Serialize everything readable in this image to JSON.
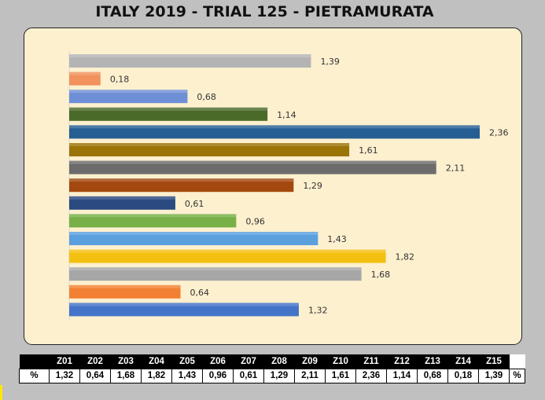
{
  "chart_data": {
    "type": "bar",
    "orientation": "horizontal",
    "title": "ITALY 2019 - TRIAL 125 - PIETRAMURATA",
    "xlim": [
      0,
      2.36
    ],
    "grid": false,
    "legend": "none",
    "bars_top_to_bottom": [
      {
        "category": "Z15",
        "value": 1.39,
        "label": "1,39",
        "color": "#b4b4b4"
      },
      {
        "category": "Z14",
        "value": 0.18,
        "label": "0,18",
        "color": "#f2925c"
      },
      {
        "category": "Z13",
        "value": 0.68,
        "label": "0,68",
        "color": "#6e8fd6"
      },
      {
        "category": "Z12",
        "value": 1.14,
        "label": "1,14",
        "color": "#4a6a2a"
      },
      {
        "category": "Z11",
        "value": 2.36,
        "label": "2,36",
        "color": "#255e92"
      },
      {
        "category": "Z10",
        "value": 1.61,
        "label": "1,61",
        "color": "#9b7408"
      },
      {
        "category": "Z09",
        "value": 2.11,
        "label": "2,11",
        "color": "#6c6c6c"
      },
      {
        "category": "Z08",
        "value": 1.29,
        "label": "1,29",
        "color": "#a3480e"
      },
      {
        "category": "Z07",
        "value": 0.61,
        "label": "0,61",
        "color": "#2a4a80"
      },
      {
        "category": "Z06",
        "value": 0.96,
        "label": "0,96",
        "color": "#76b046"
      },
      {
        "category": "Z05",
        "value": 1.43,
        "label": "1,43",
        "color": "#5a9fde"
      },
      {
        "category": "Z04",
        "value": 1.82,
        "label": "1,82",
        "color": "#f4c010"
      },
      {
        "category": "Z03",
        "value": 1.68,
        "label": "1,68",
        "color": "#a6a6a6"
      },
      {
        "category": "Z02",
        "value": 0.64,
        "label": "0,64",
        "color": "#f38032"
      },
      {
        "category": "Z01",
        "value": 1.32,
        "label": "1,32",
        "color": "#4474c8"
      }
    ]
  },
  "table": {
    "row_label": "%",
    "unit_label": "%",
    "headers": [
      "Z01",
      "Z02",
      "Z03",
      "Z04",
      "Z05",
      "Z06",
      "Z07",
      "Z08",
      "Z09",
      "Z10",
      "Z11",
      "Z12",
      "Z13",
      "Z14",
      "Z15"
    ],
    "values": [
      "1,32",
      "0,64",
      "1,68",
      "1,82",
      "1,43",
      "0,96",
      "0,61",
      "1,29",
      "2,11",
      "1,61",
      "2,36",
      "1,14",
      "0,68",
      "0,18",
      "1,39"
    ]
  }
}
